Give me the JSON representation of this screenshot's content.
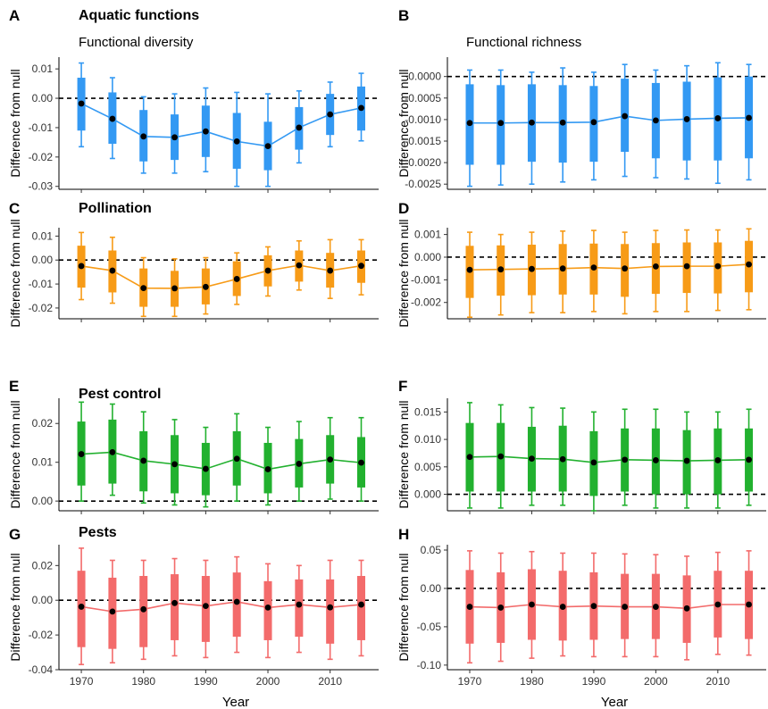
{
  "figure": {
    "row_titles": [
      "Aquatic functions",
      "Pollination",
      "Pest control",
      "Pests"
    ],
    "col_titles": [
      "Functional diversity",
      "Functional richness"
    ],
    "xlabel": "Year",
    "ylabel": "Difference from null"
  },
  "colors": {
    "aquatic": "#3399f3",
    "pollination": "#f79b17",
    "pest_control": "#22b12f",
    "pests": "#f36b6b",
    "median_dot": "#000000",
    "null_line": "#000000"
  },
  "chart_data": [
    {
      "panel": "A",
      "type": "boxplot",
      "row_title": "Aquatic functions",
      "col_title": "Functional diversity",
      "color": "#3399f3",
      "x": [
        1970,
        1975,
        1980,
        1985,
        1990,
        1995,
        2000,
        2005,
        2010,
        2015
      ],
      "xticks": [
        "1970",
        "1980",
        "1990",
        "2000",
        "2010"
      ],
      "yticks": [
        "0.01",
        "0.00",
        "-0.01",
        "-0.02",
        "-0.03"
      ],
      "ylim": [
        -0.031,
        0.014
      ],
      "ylabel": "Difference from null",
      "xlabel": "",
      "whisker_low": [
        -0.0165,
        -0.0205,
        -0.0255,
        -0.0255,
        -0.025,
        -0.03,
        -0.03,
        -0.022,
        -0.0165,
        -0.0145
      ],
      "q1": [
        -0.011,
        -0.0155,
        -0.0215,
        -0.021,
        -0.02,
        -0.024,
        -0.0245,
        -0.0175,
        -0.0125,
        -0.011
      ],
      "median": [
        -0.0018,
        -0.007,
        -0.013,
        -0.0133,
        -0.0113,
        -0.0147,
        -0.0163,
        -0.01,
        -0.0055,
        -0.0033
      ],
      "q3": [
        0.007,
        0.002,
        -0.004,
        -0.0055,
        -0.0025,
        -0.005,
        -0.008,
        -0.003,
        0.0015,
        0.004
      ],
      "whisker_high": [
        0.012,
        0.007,
        0.0005,
        0.0015,
        0.0035,
        0.002,
        0.0015,
        0.0025,
        0.0055,
        0.0085
      ]
    },
    {
      "panel": "B",
      "type": "boxplot",
      "row_title": "",
      "col_title": "Functional richness",
      "color": "#3399f3",
      "x": [
        1970,
        1975,
        1980,
        1985,
        1990,
        1995,
        2000,
        2005,
        2010,
        2015
      ],
      "xticks": [
        "1970",
        "1980",
        "1990",
        "2000",
        "2010"
      ],
      "yticks": [
        "0.0000",
        "-0.0005",
        "-0.0010",
        "-0.0015",
        "-0.0020",
        "-0.0025"
      ],
      "ylim": [
        -0.00262,
        0.00045
      ],
      "ylabel": "Difference from null",
      "xlabel": "",
      "whisker_low": [
        -0.00255,
        -0.00252,
        -0.0025,
        -0.00245,
        -0.0024,
        -0.00232,
        -0.00235,
        -0.00238,
        -0.00248,
        -0.0024
      ],
      "q1": [
        -0.00205,
        -0.00205,
        -0.00198,
        -0.002,
        -0.00198,
        -0.00175,
        -0.0019,
        -0.00195,
        -0.00195,
        -0.0019
      ],
      "median": [
        -0.00108,
        -0.00108,
        -0.00107,
        -0.00107,
        -0.00106,
        -0.00092,
        -0.00102,
        -0.00099,
        -0.00097,
        -0.00096
      ],
      "q3": [
        -0.00018,
        -0.0002,
        -0.00018,
        -0.0002,
        -0.00022,
        -5e-05,
        -0.00015,
        -0.00012,
        -2e-05,
        0.0
      ],
      "whisker_high": [
        0.00015,
        0.00015,
        0.0001,
        0.0002,
        0.0001,
        0.00028,
        0.00015,
        0.00025,
        0.00032,
        0.00028
      ]
    },
    {
      "panel": "C",
      "type": "boxplot",
      "row_title": "Pollination",
      "col_title": "",
      "color": "#f79b17",
      "x": [
        1970,
        1975,
        1980,
        1985,
        1990,
        1995,
        2000,
        2005,
        2010,
        2015
      ],
      "xticks": [
        "1970",
        "1980",
        "1990",
        "2000",
        "2010"
      ],
      "yticks": [
        "0.01",
        "0.00",
        "-0.01",
        "-0.02"
      ],
      "ylim": [
        -0.0245,
        0.0135
      ],
      "ylabel": "Difference from null",
      "xlabel": "",
      "whisker_low": [
        -0.0165,
        -0.018,
        -0.0235,
        -0.0235,
        -0.0225,
        -0.0185,
        -0.015,
        -0.0125,
        -0.016,
        -0.0145
      ],
      "q1": [
        -0.0115,
        -0.0135,
        -0.0195,
        -0.0195,
        -0.0185,
        -0.015,
        -0.011,
        -0.009,
        -0.0115,
        -0.0095
      ],
      "median": [
        -0.0025,
        -0.0044,
        -0.0117,
        -0.0118,
        -0.0112,
        -0.0079,
        -0.0044,
        -0.0022,
        -0.0044,
        -0.0024
      ],
      "q3": [
        0.006,
        0.004,
        -0.0035,
        -0.0045,
        -0.0035,
        -0.0005,
        0.002,
        0.004,
        0.003,
        0.004
      ],
      "whisker_high": [
        0.0115,
        0.0095,
        0.001,
        0.0005,
        0.001,
        0.003,
        0.0055,
        0.008,
        0.0085,
        0.0085
      ]
    },
    {
      "panel": "D",
      "type": "boxplot",
      "row_title": "",
      "col_title": "",
      "color": "#f79b17",
      "x": [
        1970,
        1975,
        1980,
        1985,
        1990,
        1995,
        2000,
        2005,
        2010,
        2015
      ],
      "xticks": [
        "1970",
        "1980",
        "1990",
        "2000",
        "2010"
      ],
      "yticks": [
        "0.001",
        "0.000",
        "-0.001",
        "-0.002"
      ],
      "ylim": [
        -0.00272,
        0.0013
      ],
      "ylabel": "Difference from null",
      "xlabel": "",
      "whisker_low": [
        -0.00265,
        -0.00255,
        -0.00245,
        -0.00245,
        -0.0024,
        -0.0025,
        -0.0024,
        -0.0024,
        -0.00235,
        -0.00232
      ],
      "q1": [
        -0.0018,
        -0.0017,
        -0.00168,
        -0.00165,
        -0.00165,
        -0.00175,
        -0.00162,
        -0.00158,
        -0.0016,
        -0.00155
      ],
      "median": [
        -0.00056,
        -0.00054,
        -0.00052,
        -0.0005,
        -0.00046,
        -0.0005,
        -0.00041,
        -0.0004,
        -0.0004,
        -0.00032
      ],
      "q3": [
        0.0005,
        0.00052,
        0.00055,
        0.00058,
        0.0006,
        0.00058,
        0.00062,
        0.00065,
        0.00065,
        0.00072
      ],
      "whisker_high": [
        0.0011,
        0.001,
        0.0011,
        0.00115,
        0.00118,
        0.0011,
        0.00118,
        0.0012,
        0.0012,
        0.00125
      ]
    },
    {
      "panel": "E",
      "type": "boxplot",
      "row_title": "Pest control",
      "col_title": "",
      "color": "#22b12f",
      "x": [
        1970,
        1975,
        1980,
        1985,
        1990,
        1995,
        2000,
        2005,
        2010,
        2015
      ],
      "xticks": [
        "1970",
        "1980",
        "1990",
        "2000",
        "2010"
      ],
      "yticks": [
        "0.02",
        "0.01",
        "0.00"
      ],
      "ylim": [
        -0.0025,
        0.0265
      ],
      "ylabel": "Difference from null",
      "xlabel": "",
      "whisker_low": [
        0.0,
        0.0015,
        -0.0005,
        -0.001,
        -0.0015,
        0.0,
        -0.001,
        0.0,
        0.0005,
        0.0
      ],
      "q1": [
        0.004,
        0.0045,
        0.0025,
        0.002,
        0.0015,
        0.004,
        0.002,
        0.0035,
        0.0045,
        0.0035
      ],
      "median": [
        0.0121,
        0.0126,
        0.0104,
        0.0095,
        0.0083,
        0.0109,
        0.0082,
        0.0096,
        0.0107,
        0.0099
      ],
      "q3": [
        0.0205,
        0.021,
        0.018,
        0.017,
        0.015,
        0.018,
        0.015,
        0.016,
        0.017,
        0.0165
      ],
      "whisker_high": [
        0.0255,
        0.025,
        0.023,
        0.021,
        0.019,
        0.0225,
        0.019,
        0.0205,
        0.0215,
        0.0215
      ]
    },
    {
      "panel": "F",
      "type": "boxplot",
      "row_title": "",
      "col_title": "",
      "color": "#22b12f",
      "x": [
        1970,
        1975,
        1980,
        1985,
        1990,
        1995,
        2000,
        2005,
        2010,
        2015
      ],
      "xticks": [
        "1970",
        "1980",
        "1990",
        "2000",
        "2010"
      ],
      "yticks": [
        "0.015",
        "0.010",
        "0.005",
        "0.000"
      ],
      "ylim": [
        -0.003,
        0.0175
      ],
      "ylabel": "Difference from null",
      "xlabel": "",
      "whisker_low": [
        -0.0025,
        -0.0025,
        -0.002,
        -0.002,
        -0.003,
        -0.002,
        -0.0025,
        -0.0025,
        -0.0025,
        -0.002
      ],
      "q1": [
        0.0005,
        0.0005,
        0.0005,
        0.0005,
        -0.0003,
        0.0005,
        0.0,
        0.0,
        0.0,
        0.0005
      ],
      "median": [
        0.0068,
        0.0069,
        0.0065,
        0.0064,
        0.0058,
        0.0063,
        0.0062,
        0.0061,
        0.0062,
        0.0063
      ],
      "q3": [
        0.013,
        0.013,
        0.0123,
        0.0125,
        0.0115,
        0.012,
        0.012,
        0.0117,
        0.012,
        0.012
      ],
      "whisker_high": [
        0.0167,
        0.0163,
        0.0158,
        0.0157,
        0.015,
        0.0155,
        0.0155,
        0.015,
        0.015,
        0.0155
      ]
    },
    {
      "panel": "G",
      "type": "boxplot",
      "row_title": "Pests",
      "col_title": "",
      "color": "#f36b6b",
      "x": [
        1970,
        1975,
        1980,
        1985,
        1990,
        1995,
        2000,
        2005,
        2010,
        2015
      ],
      "xticks": [
        "1970",
        "1980",
        "1990",
        "2000",
        "2010"
      ],
      "yticks": [
        "0.02",
        "0.00",
        "-0.02",
        "-0.04"
      ],
      "ylim": [
        -0.04,
        0.032
      ],
      "ylabel": "Difference from null",
      "xlabel": "Year",
      "whisker_low": [
        -0.037,
        -0.036,
        -0.034,
        -0.032,
        -0.033,
        -0.03,
        -0.033,
        -0.03,
        -0.034,
        -0.032
      ],
      "q1": [
        -0.027,
        -0.028,
        -0.027,
        -0.023,
        -0.024,
        -0.021,
        -0.023,
        -0.021,
        -0.025,
        -0.023
      ],
      "median": [
        -0.0037,
        -0.0065,
        -0.0052,
        -0.0016,
        -0.0033,
        -0.0009,
        -0.0042,
        -0.0025,
        -0.0041,
        -0.0025
      ],
      "q3": [
        0.017,
        0.013,
        0.014,
        0.015,
        0.014,
        0.016,
        0.011,
        0.012,
        0.012,
        0.014
      ],
      "whisker_high": [
        0.03,
        0.023,
        0.023,
        0.024,
        0.023,
        0.025,
        0.021,
        0.02,
        0.023,
        0.023
      ]
    },
    {
      "panel": "H",
      "type": "boxplot",
      "row_title": "",
      "col_title": "",
      "color": "#f36b6b",
      "x": [
        1970,
        1975,
        1980,
        1985,
        1990,
        1995,
        2000,
        2005,
        2010,
        2015
      ],
      "xticks": [
        "1970",
        "1980",
        "1990",
        "2000",
        "2010"
      ],
      "yticks": [
        "0.05",
        "0.00",
        "-0.05",
        "-0.10"
      ],
      "ylim": [
        -0.106,
        0.057
      ],
      "ylabel": "Difference from null",
      "xlabel": "Year",
      "whisker_low": [
        -0.097,
        -0.095,
        -0.091,
        -0.088,
        -0.089,
        -0.089,
        -0.089,
        -0.093,
        -0.086,
        -0.087
      ],
      "q1": [
        -0.072,
        -0.071,
        -0.067,
        -0.068,
        -0.067,
        -0.066,
        -0.066,
        -0.071,
        -0.064,
        -0.066
      ],
      "median": [
        -0.024,
        -0.025,
        -0.021,
        -0.024,
        -0.023,
        -0.024,
        -0.024,
        -0.026,
        -0.021,
        -0.021
      ],
      "q3": [
        0.024,
        0.021,
        0.025,
        0.023,
        0.021,
        0.019,
        0.019,
        0.017,
        0.023,
        0.023
      ],
      "whisker_high": [
        0.049,
        0.046,
        0.048,
        0.046,
        0.046,
        0.045,
        0.044,
        0.042,
        0.047,
        0.049
      ]
    }
  ]
}
